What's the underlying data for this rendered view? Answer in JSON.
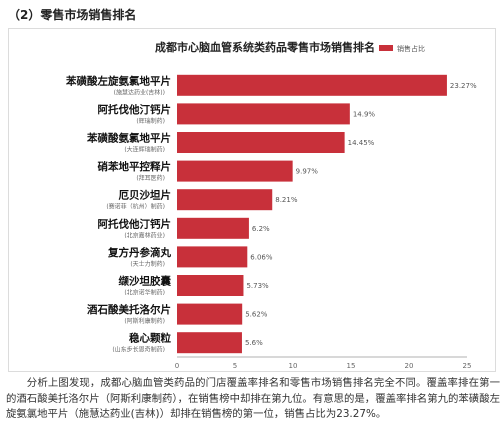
{
  "section_heading": "（2）零售市场销售排名",
  "chart_data": {
    "type": "bar",
    "orientation": "horizontal",
    "title": "成都市心脑血管系统类药品零售市场销售排名",
    "legend": {
      "label": "销售占比",
      "color": "#c8303a",
      "position": "top-right"
    },
    "categories": [
      {
        "name": "苯磺酸左旋氨氯地平片",
        "maker": "(施慧达药业(吉林))"
      },
      {
        "name": "阿托伐他汀钙片",
        "maker": "(辉瑞制药)"
      },
      {
        "name": "苯磺酸氨氯地平片",
        "maker": "(大连辉瑞制药)"
      },
      {
        "name": "硝苯地平控释片",
        "maker": "(拜耳医药)"
      },
      {
        "name": "厄贝沙坦片",
        "maker": "(赛诺菲（杭州）制药)"
      },
      {
        "name": "阿托伐他汀钙片",
        "maker": "(北京嘉林药业)"
      },
      {
        "name": "复方丹参滴丸",
        "maker": "(天士力制药)"
      },
      {
        "name": "缬沙坦胶囊",
        "maker": "(北京诺华制药)"
      },
      {
        "name": "酒石酸美托洛尔片",
        "maker": "(阿斯利康制药)"
      },
      {
        "name": "稳心颗粒",
        "maker": "(山东步长恩奇制药)"
      }
    ],
    "values": [
      23.27,
      14.9,
      14.45,
      9.97,
      8.21,
      6.2,
      6.06,
      5.73,
      5.62,
      5.6
    ],
    "value_labels": [
      "23.27%",
      "14.9%",
      "14.45%",
      "9.97%",
      "8.21%",
      "6.2%",
      "6.06%",
      "5.73%",
      "5.62%",
      "5.6%"
    ],
    "xlim": [
      0,
      25
    ],
    "xticks": [
      0,
      5,
      10,
      15,
      20,
      25
    ],
    "bar_color": "#c8303a",
    "grid": false
  },
  "analysis_text": "分析上图发现，成都心脑血管类药品的门店覆盖率排名和零售市场销售排名完全不同。覆盖率排在第一的酒石酸美托洛尔片（阿斯利康制药），在销售榜中却排在第九位。有意思的是，覆盖率排名第九的苯磺酸左旋氨氯地平片（施慧达药业(吉林)）却排在销售榜的第一位，销售占比为23.27%。"
}
